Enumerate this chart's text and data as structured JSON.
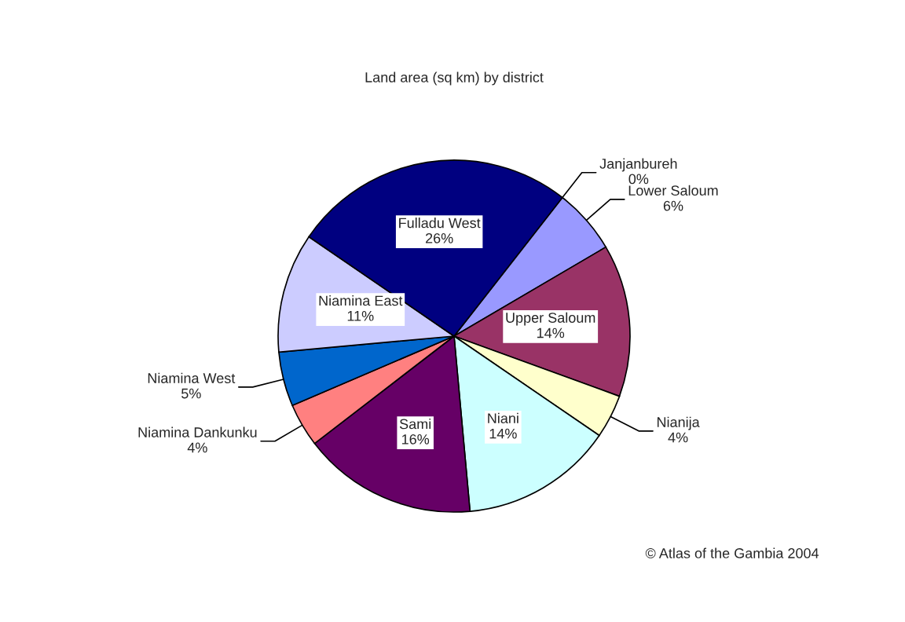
{
  "chart_data": {
    "type": "pie",
    "title": "Land area (sq km) by district",
    "categories": [
      "Janjanbureh",
      "Lower Saloum",
      "Upper Saloum",
      "Nianija",
      "Niani",
      "Sami",
      "Niamina Dankunku",
      "Niamina West",
      "Niamina East",
      "Fulladu West"
    ],
    "values": [
      0,
      6,
      14,
      4,
      14,
      16,
      4,
      5,
      11,
      26
    ],
    "value_labels": [
      "0%",
      "6%",
      "14%",
      "4%",
      "14%",
      "16%",
      "4%",
      "5%",
      "11%",
      "26%"
    ],
    "colors": [
      "#ff00ff",
      "#9999ff",
      "#993366",
      "#ffffcc",
      "#ccffff",
      "#660066",
      "#ff8080",
      "#0066cc",
      "#ccccff",
      "#000080"
    ],
    "annotations": [
      "© Atlas of the Gambia 2004"
    ]
  }
}
